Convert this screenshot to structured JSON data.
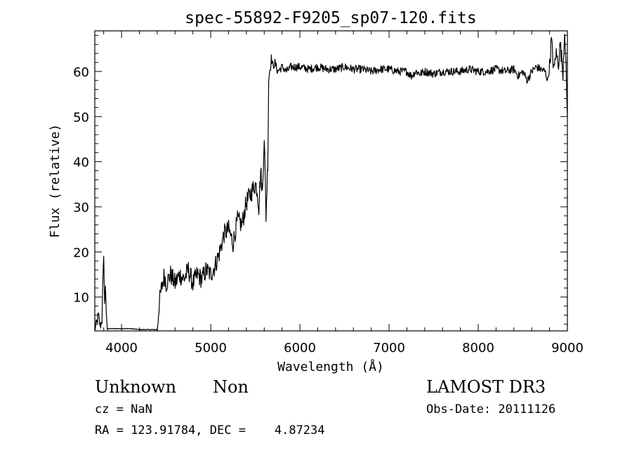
{
  "chart_data": {
    "type": "line",
    "title": "spec-55892-F9205_sp07-120.fits",
    "xlabel": "Wavelength (Å)",
    "ylabel": "Flux (relative)",
    "xlim": [
      3700,
      9000
    ],
    "ylim": [
      2.5,
      69
    ],
    "xticks": [
      4000,
      5000,
      6000,
      7000,
      8000,
      9000
    ],
    "yticks": [
      10,
      20,
      30,
      40,
      50,
      60
    ],
    "grid": false,
    "legend": "none",
    "line_color": "#000000",
    "series": [
      {
        "x": [
          3700,
          3720,
          3740,
          3760,
          3780,
          3800,
          3810,
          3820,
          3830,
          3840,
          3850,
          3900,
          4000,
          4100,
          4200,
          4300,
          4380,
          4400,
          4420,
          4440,
          4460,
          4480,
          4500,
          4550,
          4600,
          4650,
          4700,
          4750,
          4800,
          4850,
          4900,
          4950,
          5000,
          5050,
          5100,
          5150,
          5200,
          5250,
          5300,
          5350,
          5400,
          5450,
          5500,
          5520,
          5540,
          5560,
          5580,
          5600,
          5620,
          5640,
          5650,
          5660,
          5670,
          5680,
          5700,
          5720,
          5750,
          5800,
          5850,
          5900,
          6000,
          6100,
          6200,
          6300,
          6400,
          6500,
          6600,
          6700,
          6800,
          6900,
          7000,
          7100,
          7200,
          7250,
          7300,
          7350,
          7400,
          7500,
          7600,
          7700,
          7800,
          7900,
          8000,
          8100,
          8200,
          8300,
          8400,
          8450,
          8500,
          8550,
          8600,
          8650,
          8700,
          8750,
          8780,
          8800,
          8820,
          8850,
          8870,
          8900,
          8920,
          8950,
          8970,
          9000
        ],
        "y": [
          3,
          4,
          6,
          3.5,
          5,
          20,
          8,
          13,
          5,
          3,
          3,
          3,
          3,
          3,
          2.8,
          2.8,
          2.8,
          2.8,
          8,
          11,
          13,
          15,
          13,
          15,
          13,
          15,
          14,
          16,
          13,
          15,
          14,
          16,
          15,
          17,
          20,
          24,
          25,
          22,
          27,
          26,
          31,
          33,
          35,
          34,
          30,
          38,
          33,
          46,
          28,
          40,
          58,
          60,
          61,
          63,
          61,
          62,
          60,
          61,
          60,
          61,
          61,
          60.5,
          61,
          60.5,
          60.5,
          61,
          60.5,
          60.5,
          60,
          60.5,
          60.5,
          60,
          60,
          59,
          60,
          59.5,
          60,
          59.5,
          60,
          60,
          60,
          60.5,
          60,
          60,
          60.5,
          60,
          60.5,
          59,
          60,
          58,
          60,
          61,
          60.5,
          60,
          58,
          61,
          67,
          60,
          64,
          62,
          66,
          60,
          70,
          50
        ]
      }
    ]
  },
  "annotations": {
    "object": "Unknown",
    "class": "Non",
    "survey": "LAMOST DR3",
    "cz": "cz = NaN",
    "obs_date": "Obs-Date: 20111126",
    "coords": "RA = 123.91784, DEC =    4.87234"
  }
}
